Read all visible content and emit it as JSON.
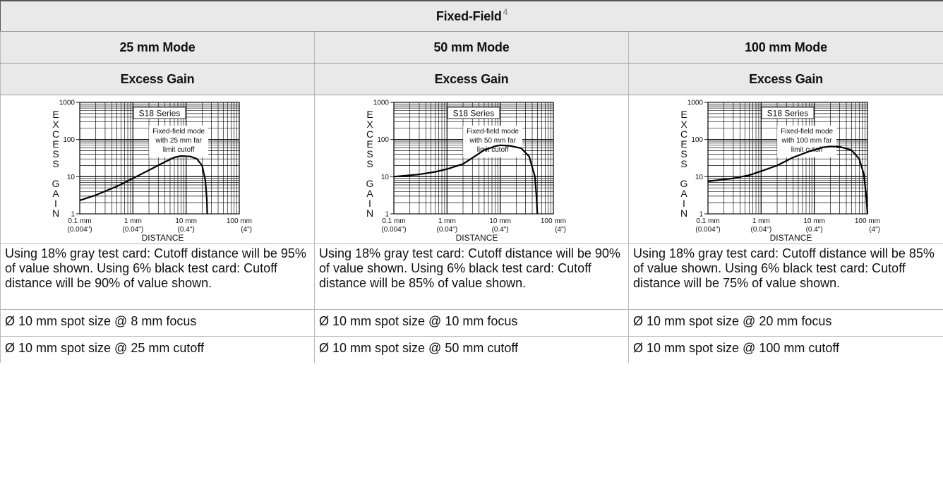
{
  "header": {
    "title": "Fixed-Field",
    "note_ref": "4"
  },
  "modes": [
    {
      "mode_label": "25 mm Mode",
      "subheader": "Excess Gain",
      "description": "Using 18% gray test card: Cutoff distance will be 95% of value shown. Using 6% black test card: Cutoff distance will be 90% of value shown.",
      "focus": "Ø 10 mm spot size @ 8 mm focus",
      "cutoff": "Ø 10 mm spot size @ 25 mm cutoff"
    },
    {
      "mode_label": "50 mm Mode",
      "subheader": "Excess Gain",
      "description": "Using 18% gray test card: Cutoff distance will be 90% of value shown. Using 6% black test card: Cutoff distance will be 85% of value shown.",
      "focus": "Ø 10 mm spot size @ 10 mm focus",
      "cutoff": "Ø 10 mm spot size @ 50 mm cutoff"
    },
    {
      "mode_label": "100 mm Mode",
      "subheader": "Excess Gain",
      "description": "Using 18% gray test card: Cutoff distance will be 85% of value shown. Using 6% black test card: Cutoff distance will be 75% of value shown.",
      "focus": "Ø 10 mm spot size @ 20 mm focus",
      "cutoff": "Ø 10 mm spot size @ 100 mm cutoff"
    }
  ],
  "chart_data": [
    {
      "type": "line",
      "x_scale": "log",
      "y_scale": "log",
      "xlim": [
        0.1,
        100
      ],
      "ylim": [
        1,
        1000
      ],
      "grid": true,
      "y_tick_labels": [
        "1000",
        "100",
        "10",
        "1"
      ],
      "x_tick_labels": [
        {
          "top": "0.1 mm",
          "bottom": "(0.004\")"
        },
        {
          "top": "1 mm",
          "bottom": "(0.04\")"
        },
        {
          "top": "10 mm",
          "bottom": "(0.4\")"
        },
        {
          "top": "100 mm",
          "bottom": "(4\")"
        }
      ],
      "ylabel_letters": [
        "E",
        "X",
        "C",
        "E",
        "S",
        "S",
        "",
        "G",
        "A",
        "I",
        "N"
      ],
      "xlabel": "DISTANCE",
      "annotations": [
        "S18 Series",
        "Fixed-field mode",
        "with 25 mm far",
        "limit cutoff"
      ],
      "series": [
        {
          "x": [
            0.1,
            0.2,
            0.5,
            1,
            2,
            4,
            6,
            8,
            12,
            16,
            20,
            23,
            24.5,
            25
          ],
          "values": [
            2.3,
            3.2,
            5.5,
            9,
            15,
            25,
            33,
            36,
            35,
            30,
            20,
            8,
            2.5,
            1
          ]
        }
      ]
    },
    {
      "type": "line",
      "x_scale": "log",
      "y_scale": "log",
      "xlim": [
        0.1,
        100
      ],
      "ylim": [
        1,
        1000
      ],
      "grid": true,
      "y_tick_labels": [
        "1000",
        "100",
        "10",
        "1"
      ],
      "x_tick_labels": [
        {
          "top": "0.1 mm",
          "bottom": "(0.004\")"
        },
        {
          "top": "1 mm",
          "bottom": "(0.04\")"
        },
        {
          "top": "10 mm",
          "bottom": "(0.4\")"
        },
        {
          "top": "100 mm",
          "bottom": "(4\")"
        }
      ],
      "ylabel_letters": [
        "E",
        "X",
        "C",
        "E",
        "S",
        "S",
        "",
        "G",
        "A",
        "I",
        "N"
      ],
      "xlabel": "DISTANCE",
      "annotations": [
        "S18 Series",
        "Fixed-field mode",
        "with 50 mm far",
        "limit cutoff"
      ],
      "series": [
        {
          "x": [
            0.1,
            0.3,
            0.6,
            1,
            2,
            3,
            5,
            8,
            10,
            15,
            25,
            35,
            45,
            48,
            50
          ],
          "values": [
            10,
            11.5,
            13.5,
            16,
            22,
            32,
            52,
            66,
            70,
            68,
            58,
            35,
            10,
            3,
            1
          ]
        }
      ]
    },
    {
      "type": "line",
      "x_scale": "log",
      "y_scale": "log",
      "xlim": [
        0.1,
        100
      ],
      "ylim": [
        1,
        1000
      ],
      "grid": true,
      "y_tick_labels": [
        "1000",
        "100",
        "10",
        "1"
      ],
      "x_tick_labels": [
        {
          "top": "0.1 mm",
          "bottom": "(0.004\")"
        },
        {
          "top": "1 mm",
          "bottom": "(0.04\")"
        },
        {
          "top": "10 mm",
          "bottom": "(0.4\")"
        },
        {
          "top": "100 mm",
          "bottom": "(4\")"
        }
      ],
      "ylabel_letters": [
        "E",
        "X",
        "C",
        "E",
        "S",
        "S",
        "",
        "G",
        "A",
        "I",
        "N"
      ],
      "xlabel": "DISTANCE",
      "annotations": [
        "S18 Series",
        "Fixed-field mode",
        "with 100 mm far",
        "limit cutoff"
      ],
      "series": [
        {
          "x": [
            0.1,
            0.3,
            0.6,
            1,
            2,
            4,
            8,
            15,
            20,
            30,
            50,
            70,
            85,
            95,
            100
          ],
          "values": [
            7.5,
            9,
            11,
            14,
            20,
            33,
            48,
            62,
            65,
            64,
            52,
            30,
            12,
            3,
            1
          ]
        }
      ]
    }
  ]
}
